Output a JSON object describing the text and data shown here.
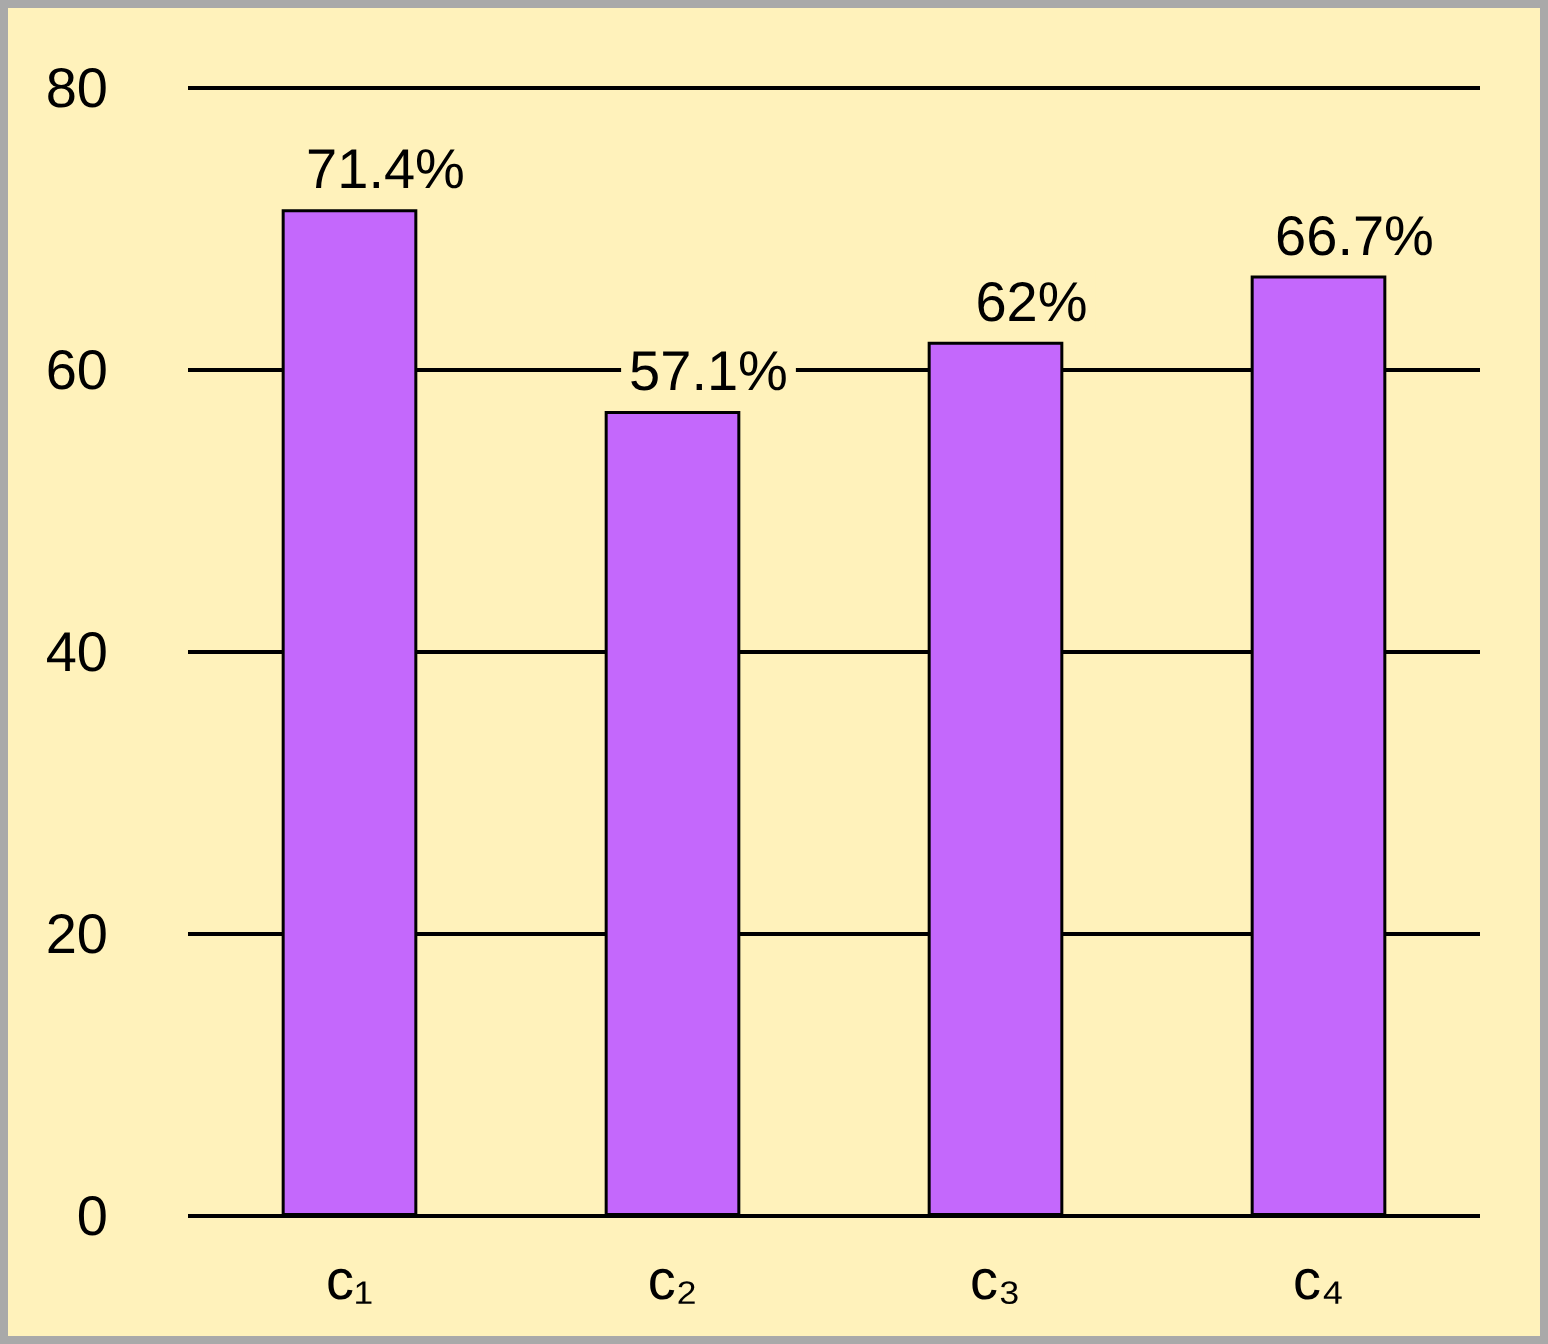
{
  "chart_data": {
    "type": "bar",
    "categories": [
      "c₁",
      "c₂",
      "c₃",
      "c₄"
    ],
    "values": [
      71.4,
      57.1,
      62,
      66.7
    ],
    "value_labels": [
      "71.4%",
      "57.1%",
      "62%",
      "66.7%"
    ],
    "color": "#c468fc",
    "ylim": [
      0,
      80
    ],
    "yticks": [
      0,
      20,
      40,
      60,
      80
    ],
    "grid": "y"
  }
}
